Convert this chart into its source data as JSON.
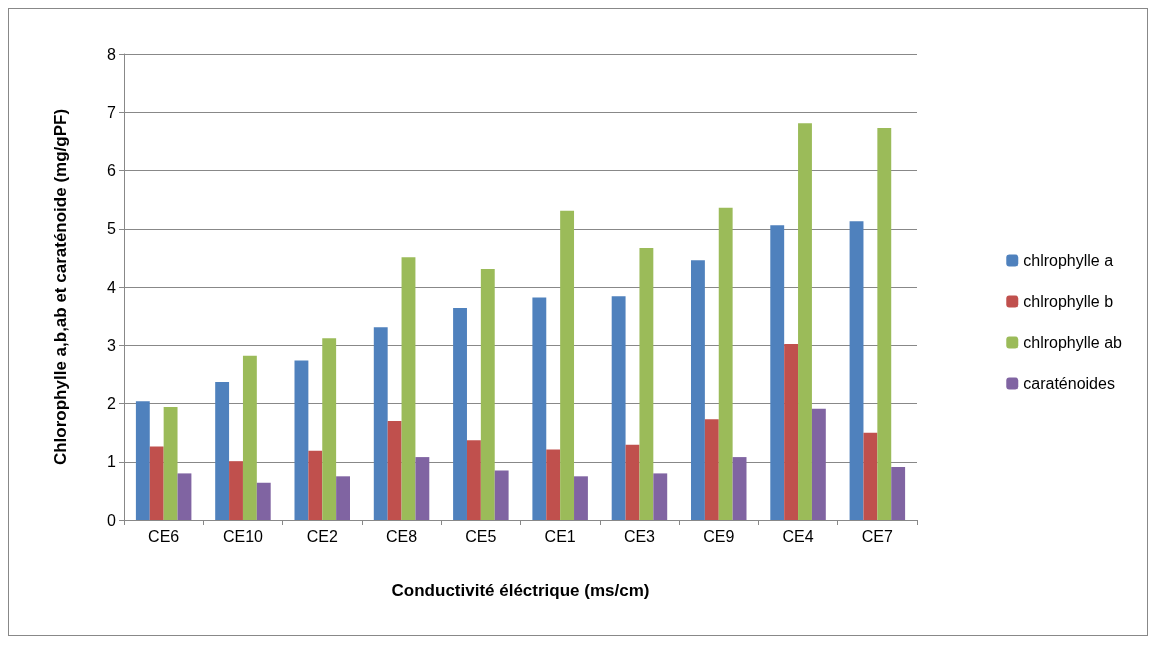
{
  "chart_data": {
    "type": "bar",
    "xlabel": "Conductivité éléctrique (ms/cm)",
    "ylabel": "Chlorophylle a,b,ab et caraténoide (mg/gPF)",
    "categories": [
      "CE6",
      "CE10",
      "CE2",
      "CE8",
      "CE5",
      "CE1",
      "CE3",
      "CE9",
      "CE4",
      "CE7"
    ],
    "series": [
      {
        "name": "chlrophylle a",
        "color": "#4f81bd",
        "values": [
          2.04,
          2.37,
          2.74,
          3.31,
          3.64,
          3.82,
          3.84,
          4.46,
          5.06,
          5.13
        ]
      },
      {
        "name": "chlrophylle b",
        "color": "#c0504d",
        "values": [
          1.26,
          1.01,
          1.19,
          1.7,
          1.37,
          1.21,
          1.29,
          1.73,
          3.02,
          1.5
        ]
      },
      {
        "name": "chlrophylle ab",
        "color": "#9bbb59",
        "values": [
          1.94,
          2.82,
          3.12,
          4.51,
          4.31,
          5.31,
          4.67,
          5.36,
          6.81,
          6.73
        ]
      },
      {
        "name": "caraténoides",
        "color": "#8064a2",
        "values": [
          0.8,
          0.64,
          0.75,
          1.08,
          0.85,
          0.75,
          0.8,
          1.08,
          1.91,
          0.91
        ]
      }
    ],
    "ylim": [
      0,
      8
    ],
    "yticks": [
      0,
      1,
      2,
      3,
      4,
      5,
      6,
      7,
      8
    ],
    "grid": "y",
    "legend": "right"
  }
}
